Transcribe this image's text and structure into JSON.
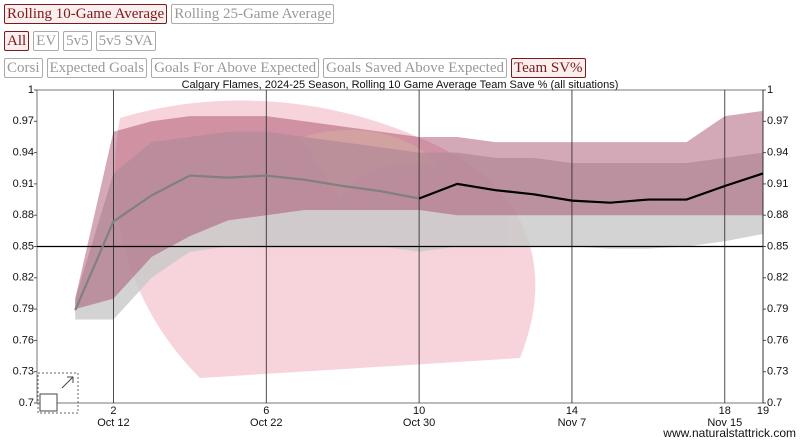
{
  "buttons": {
    "period": [
      {
        "label": "Rolling 10-Game Average",
        "active": true
      },
      {
        "label": "Rolling 25-Game Average",
        "active": false
      }
    ],
    "situation": [
      {
        "label": "All",
        "active": true
      },
      {
        "label": "EV",
        "active": false
      },
      {
        "label": "5v5",
        "active": false
      },
      {
        "label": "5v5 SVA",
        "active": false
      }
    ],
    "metric": [
      {
        "label": "Corsi",
        "active": false
      },
      {
        "label": "Expected Goals",
        "active": false
      },
      {
        "label": "Goals For Above Expected",
        "active": false
      },
      {
        "label": "Goals Saved Above Expected",
        "active": false
      },
      {
        "label": "Team SV%",
        "active": true
      }
    ]
  },
  "chart_data": {
    "type": "line",
    "title": "Calgary Flames, 2024-25 Season, Rolling 10 Game Average Team Save % (all situations)",
    "x": [
      1,
      2,
      3,
      4,
      5,
      6,
      7,
      8,
      9,
      10,
      11,
      12,
      13,
      14,
      15,
      16,
      17,
      18,
      19
    ],
    "xlim": [
      0,
      19
    ],
    "xticks": [
      2,
      6,
      10,
      14,
      18,
      19
    ],
    "x_dates": [
      {
        "x": 2,
        "label": "Oct 12"
      },
      {
        "x": 6,
        "label": "Oct 22"
      },
      {
        "x": 10,
        "label": "Oct 30"
      },
      {
        "x": 14,
        "label": "Nov 7"
      },
      {
        "x": 18,
        "label": "Nov 15"
      }
    ],
    "ylim": [
      0.7,
      1
    ],
    "yticks": [
      0.7,
      0.73,
      0.76,
      0.79,
      0.82,
      0.85,
      0.88,
      0.91,
      0.94,
      0.97,
      1
    ],
    "reference_line": 0.85,
    "bands": [
      {
        "color": "#c8c8c8",
        "upper": [
          0.8,
          0.92,
          0.95,
          0.955,
          0.96,
          0.96,
          0.955,
          0.95,
          0.945,
          0.94,
          0.94,
          0.935,
          0.935,
          0.93,
          0.93,
          0.93,
          0.93,
          0.935,
          0.94
        ],
        "lower": [
          0.78,
          0.78,
          0.82,
          0.845,
          0.85,
          0.85,
          0.85,
          0.85,
          0.85,
          0.845,
          0.85,
          0.85,
          0.85,
          0.85,
          0.848,
          0.848,
          0.85,
          0.855,
          0.862
        ]
      },
      {
        "color": "#a04060",
        "upper": [
          0.8,
          0.96,
          0.97,
          0.975,
          0.975,
          0.975,
          0.97,
          0.965,
          0.96,
          0.955,
          0.955,
          0.95,
          0.95,
          0.95,
          0.95,
          0.95,
          0.95,
          0.975,
          0.98
        ],
        "lower": [
          0.79,
          0.8,
          0.84,
          0.86,
          0.875,
          0.88,
          0.885,
          0.885,
          0.885,
          0.885,
          0.88,
          0.88,
          0.88,
          0.88,
          0.88,
          0.88,
          0.88,
          0.88,
          0.88
        ]
      }
    ],
    "series": [
      {
        "color": "#808080",
        "values": [
          0.789,
          0.874,
          0.899,
          0.918,
          0.916,
          0.918,
          0.914,
          0.908,
          0.903,
          0.896,
          null,
          null,
          null,
          null,
          null,
          null,
          null,
          null,
          null
        ]
      },
      {
        "color": "#000000",
        "values": [
          null,
          null,
          null,
          null,
          null,
          null,
          null,
          null,
          null,
          0.896,
          0.91,
          0.904,
          0.9,
          0.894,
          0.892,
          0.895,
          0.895,
          0.908,
          0.92
        ]
      }
    ],
    "attribution": "www.naturalstattrick.com"
  }
}
